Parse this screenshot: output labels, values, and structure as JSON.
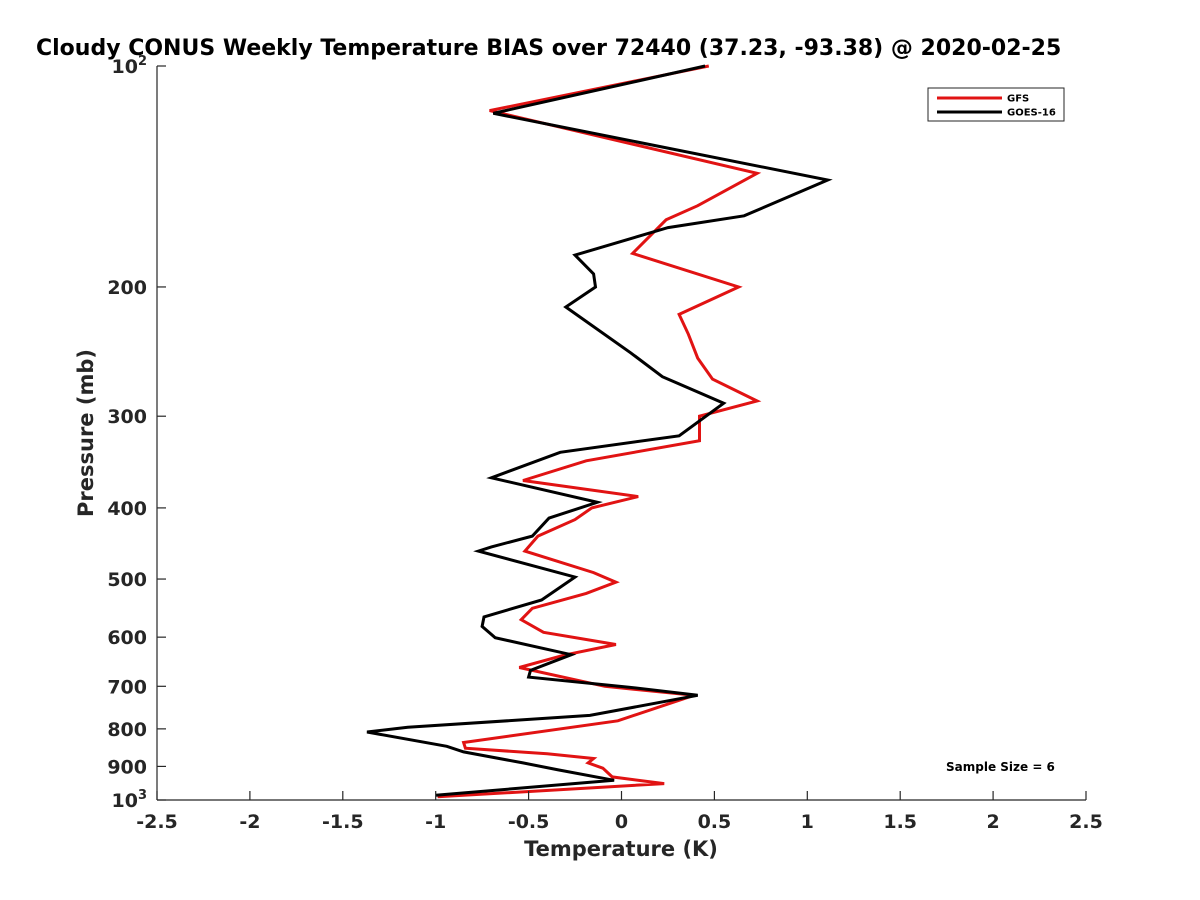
{
  "chart_data": {
    "type": "line",
    "title": "Cloudy CONUS Weekly Temperature BIAS over 72440 (37.23, -93.38) @ 2020-02-25",
    "xlabel": "Temperature (K)",
    "ylabel": "Pressure (mb)",
    "xlim": [
      -2.5,
      2.5
    ],
    "ylim": [
      100,
      1000
    ],
    "y_scale": "log",
    "y_reversed": true,
    "grid": false,
    "legend_position": "top-right",
    "x_ticks": [
      {
        "value": -2.5,
        "label": "-2.5"
      },
      {
        "value": -2,
        "label": "-2"
      },
      {
        "value": -1.5,
        "label": "-1.5"
      },
      {
        "value": -1,
        "label": "-1"
      },
      {
        "value": -0.5,
        "label": "-0.5"
      },
      {
        "value": 0,
        "label": "0"
      },
      {
        "value": 0.5,
        "label": "0.5"
      },
      {
        "value": 1,
        "label": "1"
      },
      {
        "value": 1.5,
        "label": "1.5"
      },
      {
        "value": 2,
        "label": "2"
      },
      {
        "value": 2.5,
        "label": "2.5"
      }
    ],
    "y_ticks": [
      {
        "value": 100,
        "base": "10",
        "exp": "2"
      },
      {
        "value": 200,
        "label": "200"
      },
      {
        "value": 300,
        "label": "300"
      },
      {
        "value": 400,
        "label": "400"
      },
      {
        "value": 500,
        "label": "500"
      },
      {
        "value": 600,
        "label": "600"
      },
      {
        "value": 700,
        "label": "700"
      },
      {
        "value": 800,
        "label": "800"
      },
      {
        "value": 900,
        "label": "900"
      },
      {
        "value": 1000,
        "base": "10",
        "exp": "3"
      }
    ],
    "annotation": "Sample Size = 6",
    "series": [
      {
        "name": "GFS",
        "color": "#e11313",
        "points": [
          [
            0.47,
            100
          ],
          [
            -0.71,
            115
          ],
          [
            0.73,
            140
          ],
          [
            0.41,
            155
          ],
          [
            0.24,
            162
          ],
          [
            0.06,
            180
          ],
          [
            0.63,
            200
          ],
          [
            0.31,
            218
          ],
          [
            0.36,
            232
          ],
          [
            0.41,
            250
          ],
          [
            0.49,
            267
          ],
          [
            0.73,
            286
          ],
          [
            0.42,
            300
          ],
          [
            0.42,
            324
          ],
          [
            -0.19,
            345
          ],
          [
            -0.53,
            367
          ],
          [
            0.09,
            386
          ],
          [
            -0.16,
            400
          ],
          [
            -0.25,
            415
          ],
          [
            -0.45,
            437
          ],
          [
            -0.52,
            458
          ],
          [
            -0.15,
            490
          ],
          [
            -0.03,
            505
          ],
          [
            -0.19,
            523
          ],
          [
            -0.48,
            548
          ],
          [
            -0.54,
            568
          ],
          [
            -0.42,
            591
          ],
          [
            -0.03,
            614
          ],
          [
            -0.31,
            635
          ],
          [
            -0.55,
            660
          ],
          [
            -0.09,
            700
          ],
          [
            0.39,
            720
          ],
          [
            -0.02,
            780
          ],
          [
            -0.85,
            835
          ],
          [
            -0.84,
            850
          ],
          [
            -0.4,
            865
          ],
          [
            -0.15,
            878
          ],
          [
            -0.18,
            890
          ],
          [
            -0.1,
            905
          ],
          [
            -0.05,
            930
          ],
          [
            0.23,
            950
          ],
          [
            -0.99,
            990
          ]
        ]
      },
      {
        "name": "GOES-16",
        "color": "#000000",
        "points": [
          [
            0.45,
            100
          ],
          [
            -0.69,
            116
          ],
          [
            1.11,
            143
          ],
          [
            0.66,
            160
          ],
          [
            0.25,
            166
          ],
          [
            -0.25,
            181
          ],
          [
            -0.15,
            192
          ],
          [
            -0.14,
            200
          ],
          [
            -0.3,
            213
          ],
          [
            0.05,
            246
          ],
          [
            0.22,
            265
          ],
          [
            0.55,
            288
          ],
          [
            0.31,
            319
          ],
          [
            -0.33,
            336
          ],
          [
            -0.7,
            364
          ],
          [
            -0.13,
            393
          ],
          [
            -0.39,
            413
          ],
          [
            -0.48,
            437
          ],
          [
            -0.7,
            452
          ],
          [
            -0.77,
            458
          ],
          [
            -0.25,
            497
          ],
          [
            -0.43,
            534
          ],
          [
            -0.74,
            563
          ],
          [
            -0.75,
            580
          ],
          [
            -0.68,
            601
          ],
          [
            -0.27,
            634
          ],
          [
            -0.49,
            666
          ],
          [
            -0.5,
            680
          ],
          [
            0.04,
            702
          ],
          [
            0.41,
            720
          ],
          [
            -0.17,
            767
          ],
          [
            -1.15,
            796
          ],
          [
            -1.37,
            808
          ],
          [
            -0.94,
            845
          ],
          [
            -0.85,
            860
          ],
          [
            -0.53,
            890
          ],
          [
            -0.34,
            910
          ],
          [
            -0.04,
            940
          ],
          [
            -1.0,
            985
          ]
        ]
      }
    ]
  }
}
